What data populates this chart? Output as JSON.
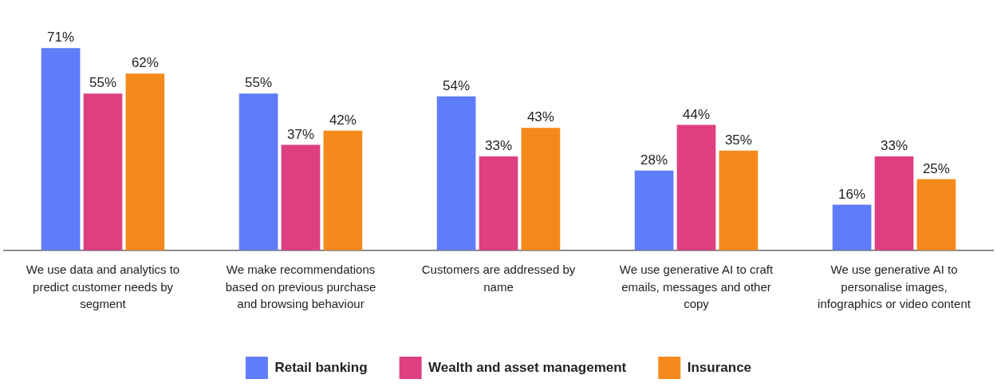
{
  "chart_data": {
    "type": "bar",
    "categories": [
      "We use data and analytics to predict customer needs by segment",
      "We make recommendations based on previous purchase and browsing behaviour",
      "Customers are addressed by name",
      "We use generative AI to craft emails, messages and other copy",
      "We use generative AI to personalise images, infographics or video content"
    ],
    "series": [
      {
        "name": "Retail banking",
        "color": "#5f7cf9",
        "values": [
          71,
          55,
          54,
          28,
          16
        ],
        "value_labels": [
          "71%",
          "55%",
          "54%",
          "28%",
          "16%"
        ]
      },
      {
        "name": "Wealth and asset management",
        "color": "#dd3f80",
        "values": [
          55,
          37,
          33,
          44,
          33
        ],
        "value_labels": [
          "55%",
          "37%",
          "33%",
          "44%",
          "33%"
        ]
      },
      {
        "name": "Insurance",
        "color": "#f5891b",
        "values": [
          62,
          42,
          43,
          35,
          25
        ],
        "value_labels": [
          "62%",
          "42%",
          "43%",
          "35%",
          "25%"
        ]
      }
    ],
    "legend": "bottom",
    "grid": false
  }
}
